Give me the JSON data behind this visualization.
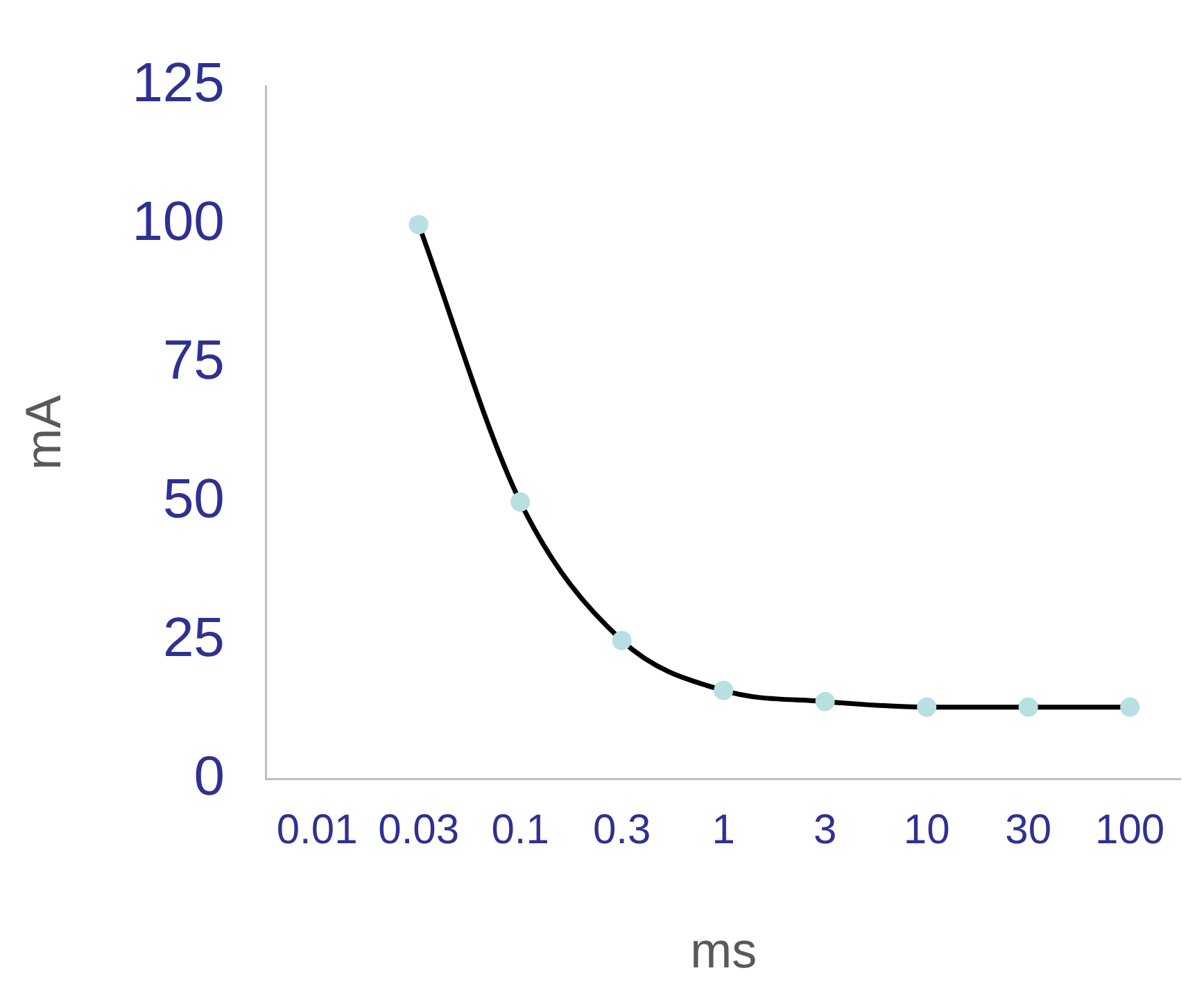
{
  "chart_data": {
    "type": "line",
    "xlabel": "ms",
    "ylabel": "mA",
    "categories": [
      "0.01",
      "0.03",
      "0.1",
      "0.3",
      "1",
      "3",
      "10",
      "30",
      "100"
    ],
    "series": [
      {
        "color": "#000000",
        "colors": [
          "#b8dfe2",
          "#b8dfe2",
          "#b8dfe2",
          "#b8dfe2",
          "#b8dfe2",
          "#b8dfe2",
          "#b8dfe2",
          "#b8dfe2",
          "#b8dfe2"
        ],
        "values": [
          null,
          100,
          50,
          25,
          16,
          14,
          13,
          13,
          13
        ]
      }
    ],
    "ylim": [
      0,
      125
    ],
    "yticks": [
      0,
      25,
      50,
      75,
      100,
      125
    ],
    "grid": false,
    "legend": false,
    "marker": "circle",
    "line_style": "solid"
  }
}
